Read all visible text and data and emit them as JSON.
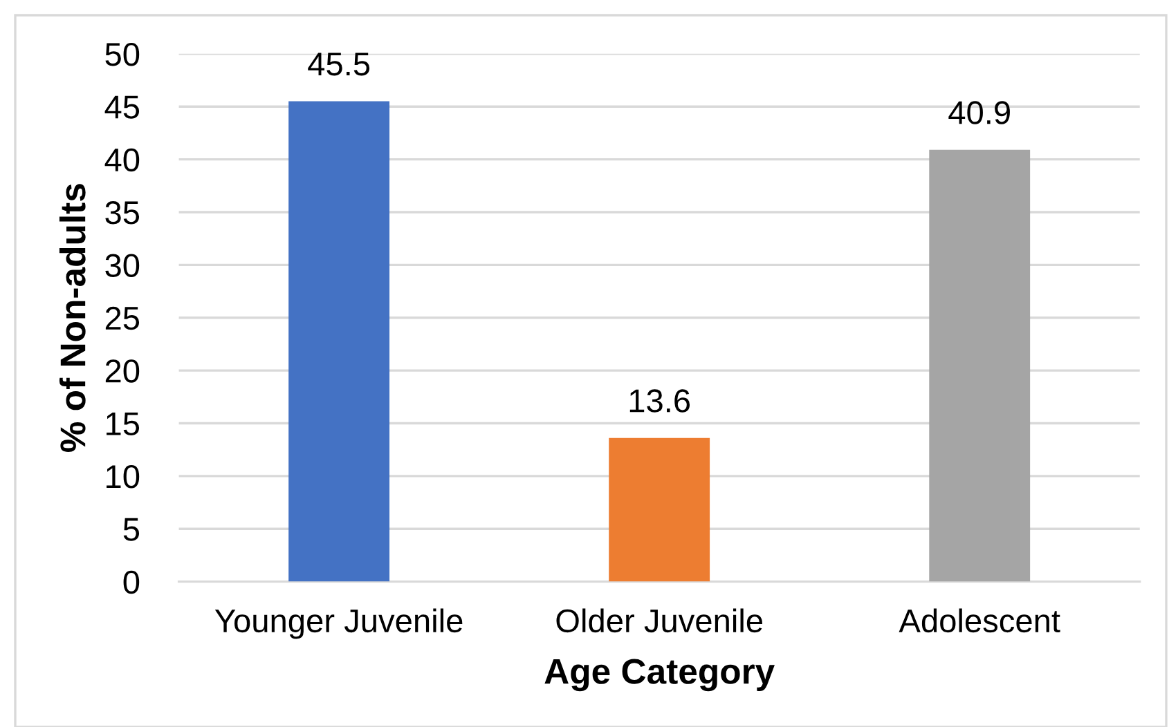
{
  "chart_data": {
    "type": "bar",
    "xlabel": "Age Category",
    "ylabel": "% of Non-adults",
    "categories": [
      "Younger Juvenile",
      "Older Juvenile",
      "Adolescent"
    ],
    "values": [
      45.5,
      13.6,
      40.9
    ],
    "colors": [
      "#4472c4",
      "#ed7d31",
      "#a5a5a5"
    ],
    "ylim": [
      0,
      50
    ],
    "yticks": [
      0,
      5,
      10,
      15,
      20,
      25,
      30,
      35,
      40,
      45,
      50
    ],
    "grid": "y",
    "data_labels": true
  }
}
